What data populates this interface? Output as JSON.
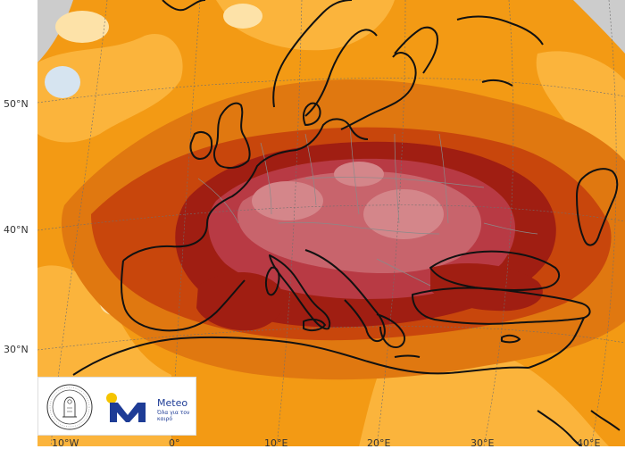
{
  "map": {
    "lat_labels": [
      "50°N",
      "40°N",
      "30°N"
    ],
    "lon_labels": [
      "10°W",
      "0°",
      "10°E",
      "20°E",
      "30°E",
      "40°E"
    ]
  },
  "colors": {
    "pale": "#fde2a8",
    "light_orange": "#fbb43c",
    "orange": "#f39a14",
    "dark_orange": "#e07810",
    "red_orange": "#c8460c",
    "dark_red": "#a01e12",
    "crimson": "#b83a44",
    "rose": "#c8646c",
    "pink": "#d4868a",
    "gray": "#cccccc",
    "water_blue": "#d6e4f0",
    "coast": "#111111",
    "border": "#8a8a8a",
    "brand_blue": "#1e3c96",
    "brand_yellow": "#f5c400"
  },
  "logo": {
    "brand": "Meteo",
    "tagline": "Όλα για τον καιρό"
  },
  "icons": {
    "seal": "university-seal-icon",
    "brand_mark": "meteo-m-logo-icon"
  }
}
